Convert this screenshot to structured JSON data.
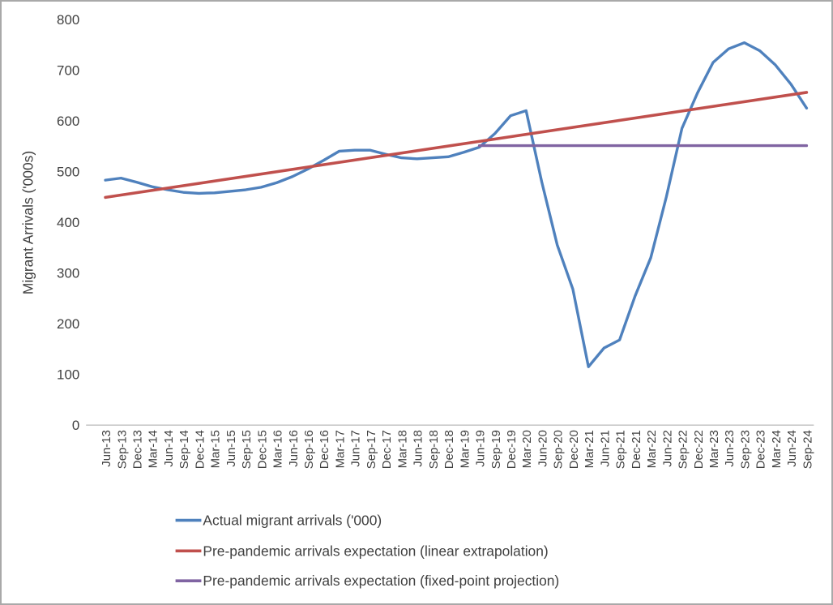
{
  "chart_data": {
    "type": "line",
    "title": "",
    "xlabel": "",
    "ylabel": "Migrant Arrivals ('000s)",
    "ylim": [
      0,
      800
    ],
    "y_ticks": [
      0,
      100,
      200,
      300,
      400,
      500,
      600,
      700,
      800
    ],
    "grid": false,
    "legend_position": "bottom-left",
    "categories": [
      "Jun-13",
      "Sep-13",
      "Dec-13",
      "Mar-14",
      "Jun-14",
      "Sep-14",
      "Dec-14",
      "Mar-15",
      "Jun-15",
      "Sep-15",
      "Dec-15",
      "Mar-16",
      "Jun-16",
      "Sep-16",
      "Dec-16",
      "Mar-17",
      "Jun-17",
      "Sep-17",
      "Dec-17",
      "Mar-18",
      "Jun-18",
      "Sep-18",
      "Dec-18",
      "Mar-19",
      "Jun-19",
      "Sep-19",
      "Dec-19",
      "Mar-20",
      "Jun-20",
      "Sep-20",
      "Dec-20",
      "Mar-21",
      "Jun-21",
      "Sep-21",
      "Dec-21",
      "Mar-22",
      "Jun-22",
      "Sep-22",
      "Dec-22",
      "Mar-23",
      "Jun-23",
      "Sep-23",
      "Dec-23",
      "Mar-24",
      "Jun-24",
      "Sep-24"
    ],
    "series": [
      {
        "name": "Actual migrant arrivals ('000)",
        "color": "#4F81BD",
        "kind": "data",
        "values": [
          483,
          487,
          479,
          470,
          464,
          459,
          457,
          458,
          461,
          464,
          469,
          478,
          490,
          505,
          522,
          540,
          542,
          542,
          534,
          527,
          525,
          527,
          529,
          538,
          548,
          575,
          610,
          620,
          480,
          355,
          268,
          115,
          152,
          168,
          255,
          330,
          450,
          585,
          655,
          715,
          742,
          754,
          738,
          710,
          672,
          625
        ]
      },
      {
        "name": "Pre-pandemic arrivals expectation (linear extrapolation)",
        "color": "#C0504D",
        "kind": "linear",
        "start_category": "Jun-13",
        "end_category": "Sep-24",
        "start_value": 449,
        "end_value": 656
      },
      {
        "name": "Pre-pandemic arrivals expectation (fixed-point projection)",
        "color": "#8064A2",
        "kind": "constant",
        "start_category": "Jun-19",
        "end_category": "Sep-24",
        "value": 551
      }
    ]
  },
  "colors": {
    "axis_line": "#BFBFBF",
    "text": "#404040",
    "background": "#FFFFFF",
    "frame": "#A9A9A9"
  }
}
